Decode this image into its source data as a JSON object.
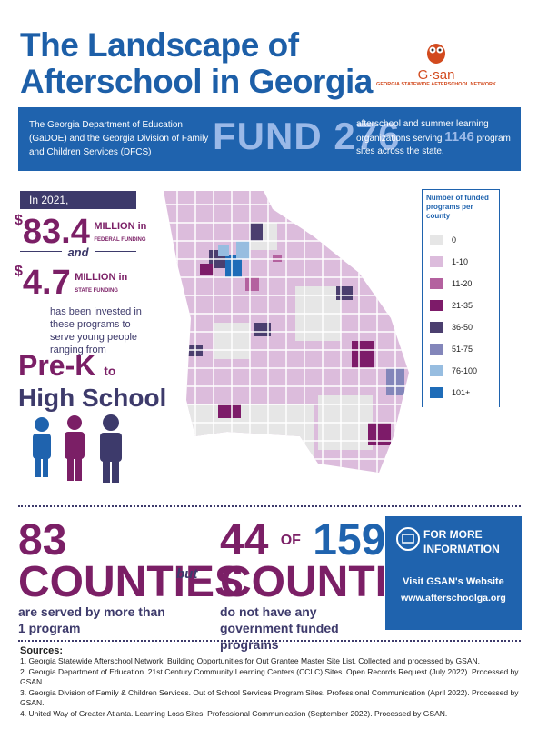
{
  "header": {
    "title_lines": [
      "The Landscape of",
      "Afterschool in Georgia"
    ]
  },
  "logo": {
    "name": "G·san",
    "tagline": "GEORGIA STATEWIDE AFTERSCHOOL NETWORK"
  },
  "banner": {
    "left": "The Georgia Department of Education (GaDOE) and the Georgia Division of Family and Children Services (DFCS)",
    "fund_word": "FUND",
    "fund_number": 276,
    "right_before": "afterschool and summer learning organizations serving",
    "sites": 1146,
    "right_after": "program sites across the state."
  },
  "funding": {
    "year": "In 2021,",
    "currency": "$",
    "federal": {
      "amount": 83.4,
      "unit": "MILLION in",
      "kind": "FEDERAL FUNDING"
    },
    "joiner": "and",
    "state": {
      "amount": 4.7,
      "unit": "MILLION in",
      "kind": "STATE FUNDING"
    },
    "body": "has been invested in these programs to serve young people ranging from",
    "range_start": "Pre-K",
    "range_to": "to",
    "range_end": "High School"
  },
  "legend": {
    "title": "Number of funded programs per county",
    "items": [
      {
        "label": "0",
        "color": "#e6e6e6"
      },
      {
        "label": "1-10",
        "color": "#dcbcdc"
      },
      {
        "label": "11-20",
        "color": "#b4619f"
      },
      {
        "label": "21-35",
        "color": "#7d1b69"
      },
      {
        "label": "36-50",
        "color": "#4b3f6f"
      },
      {
        "label": "51-75",
        "color": "#8386ba"
      },
      {
        "label": "76-100",
        "color": "#97bde0"
      },
      {
        "label": "101+",
        "color": "#1e6cb8"
      }
    ]
  },
  "stats": {
    "served": {
      "number": 83,
      "word": "COUNTIES",
      "text": "are served by more than 1 program"
    },
    "but": "but",
    "unfunded": {
      "number": 44,
      "of": "OF",
      "total": 159,
      "word": "COUNTIES",
      "text": "do not have any government funded programs"
    }
  },
  "info": {
    "heading": "FOR MORE INFORMATION",
    "visit": "Visit GSAN's Website",
    "url": "www.afterschoolga.org"
  },
  "sources": {
    "title": "Sources:",
    "items": [
      "1. Georgia Statewide Afterschool Network. Building Opportunities for Out Grantee Master Site List. Collected and processed by GSAN.",
      "2. Georgia Department of Education. 21st Century Community Learning Centers (CCLC) Sites. Open Records Request (July 2022). Processed by GSAN.",
      "3. Georgia Division of Family & Children Services. Out of School Services Program Sites. Professional Communication (April 2022). Processed by GSAN.",
      "4. United Way of Greater Atlanta. Learning Loss Sites. Professional Communication (September 2022). Processed by GSAN."
    ]
  }
}
